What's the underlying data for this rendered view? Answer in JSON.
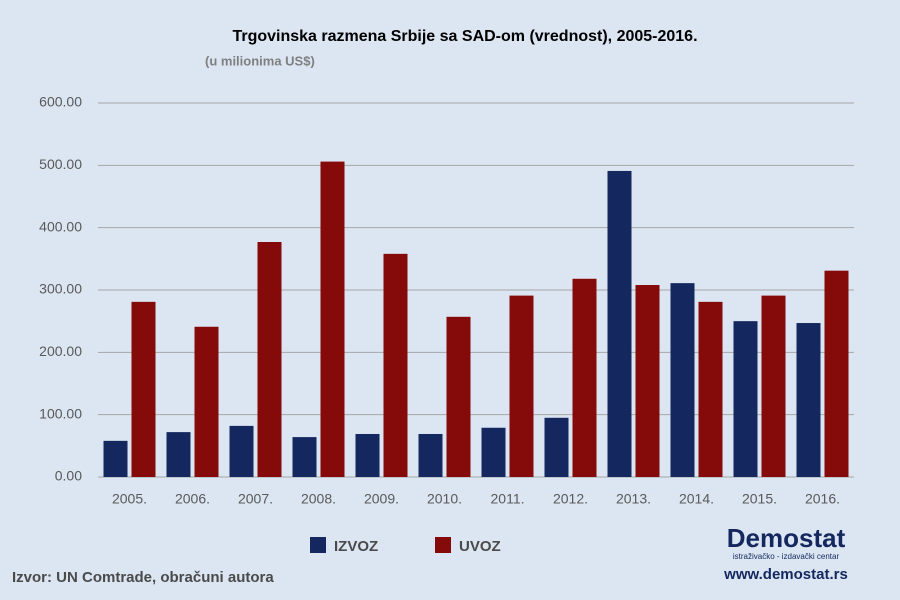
{
  "chart_data": {
    "type": "bar",
    "title": "Trgovinska razmena Srbije sa SAD-om (vrednost), 2005-2016.",
    "subtitle": "(u milionima US$)",
    "categories": [
      "2005.",
      "2006.",
      "2007.",
      "2008.",
      "2009.",
      "2010.",
      "2011.",
      "2012.",
      "2013.",
      "2014.",
      "2015.",
      "2016."
    ],
    "series": [
      {
        "name": "IZVOZ",
        "color": "#14275e",
        "values": [
          58,
          72,
          82,
          64,
          69,
          69,
          79,
          95,
          491,
          311,
          250,
          247
        ]
      },
      {
        "name": "UVOZ",
        "color": "#850a0a",
        "values": [
          281,
          241,
          377,
          506,
          358,
          257,
          291,
          318,
          308,
          281,
          291,
          331
        ]
      }
    ],
    "ylim": [
      0,
      600
    ],
    "yticks": [
      {
        "value": 0,
        "label": "0.00"
      },
      {
        "value": 100,
        "label": "100.00"
      },
      {
        "value": 200,
        "label": "200.00"
      },
      {
        "value": 300,
        "label": "300.00"
      },
      {
        "value": 400,
        "label": "400.00"
      },
      {
        "value": 500,
        "label": "500.00"
      },
      {
        "value": 600,
        "label": "600.00"
      }
    ],
    "grid": true,
    "legend": "bottom",
    "source": "Izvor: UN Comtrade, obračuni autora",
    "logo": {
      "name": "Demostat",
      "tagline": "istraživačko - izdavački centar",
      "url": "www.demostat.rs"
    }
  }
}
